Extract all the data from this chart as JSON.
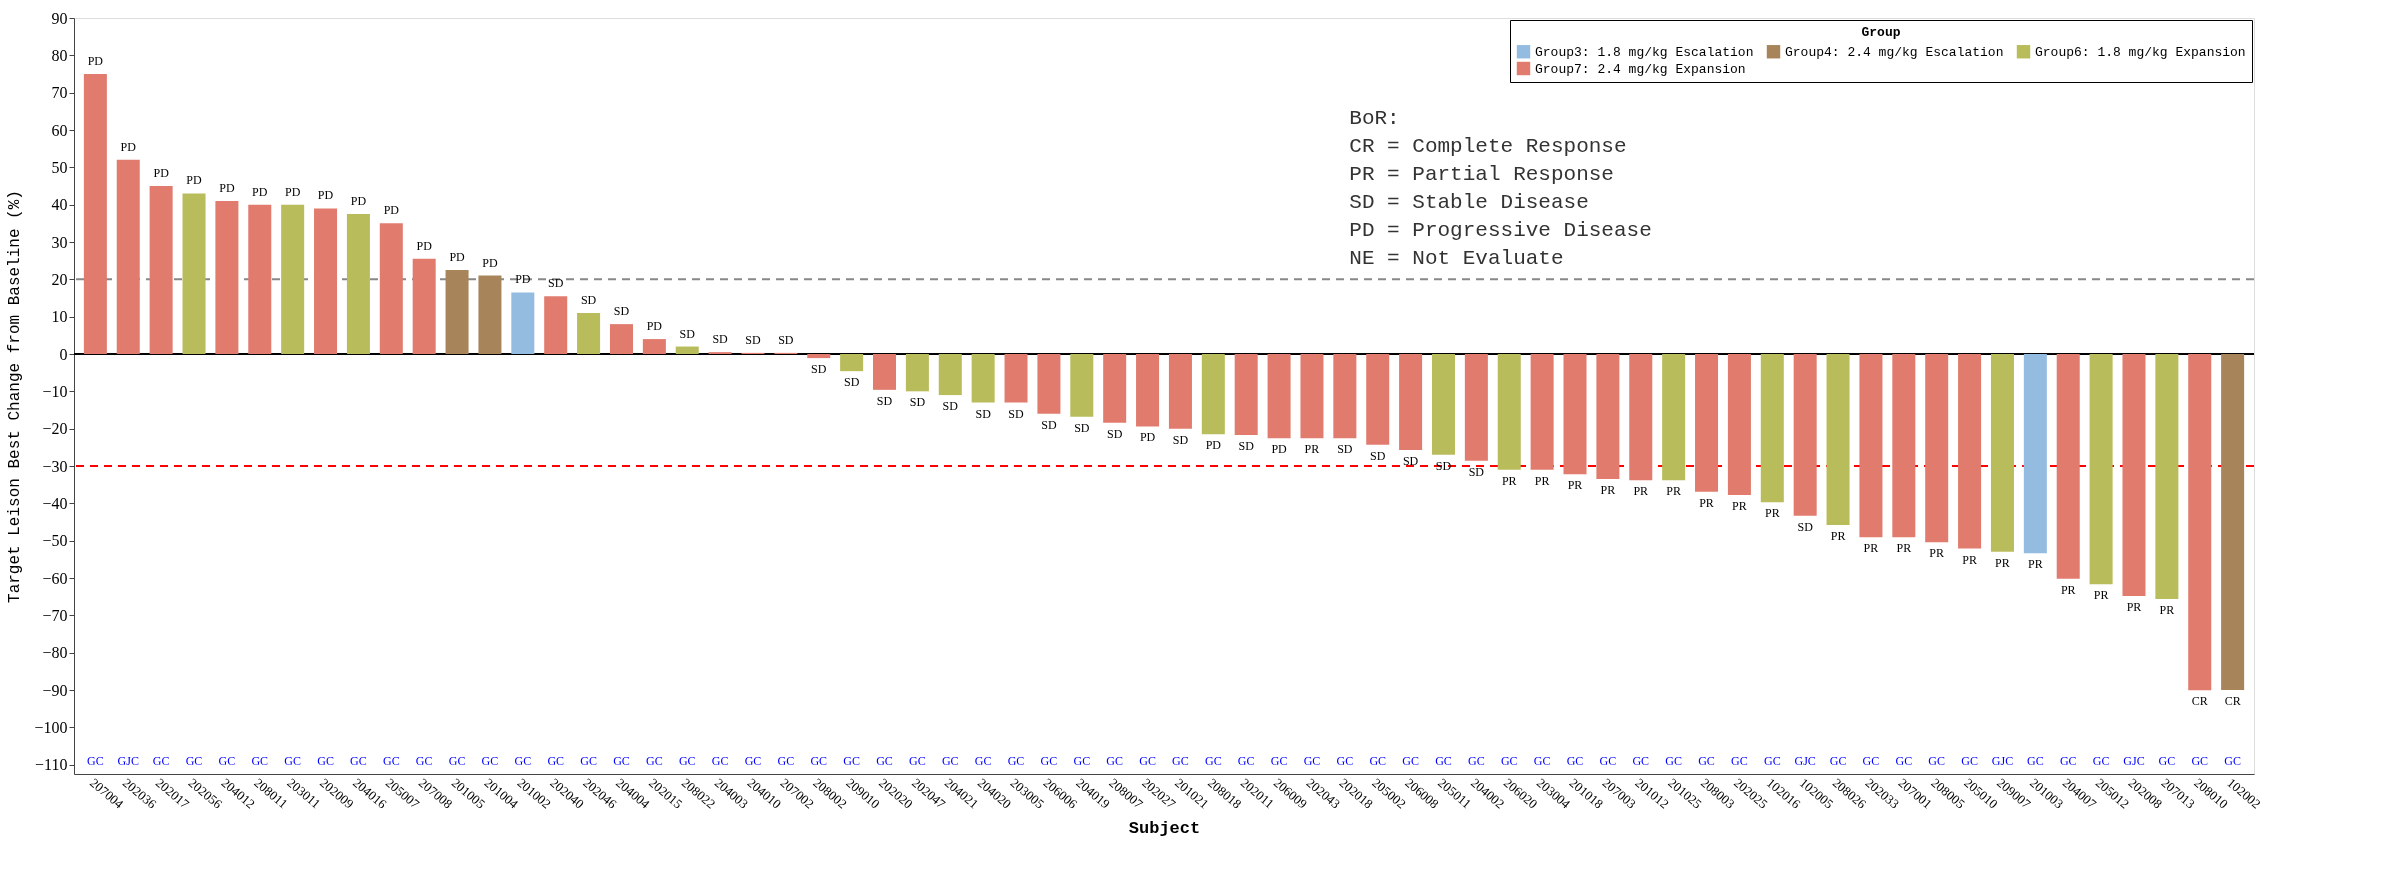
{
  "chart_data": {
    "type": "bar",
    "xlabel": "Subject",
    "ylabel": "Target Leison Best Change from Baseline (%)",
    "legend_title": "Group",
    "legend": "top right",
    "grid": false,
    "categories": [
      "207004",
      "202036",
      "202017",
      "202056",
      "204012",
      "208011",
      "203011",
      "202009",
      "204016",
      "205007",
      "207008",
      "201005",
      "201004",
      "201002",
      "202040",
      "202046",
      "204004",
      "202015",
      "208022",
      "204003",
      "204010",
      "207002",
      "208002",
      "209010",
      "202020",
      "202047",
      "204021",
      "204020",
      "203005",
      "206006",
      "204019",
      "208007",
      "202027",
      "201021",
      "208018",
      "202011",
      "206009",
      "202043",
      "202018",
      "205002",
      "206008",
      "205011",
      "204002",
      "206020",
      "203004",
      "201018",
      "207003",
      "201012",
      "201025",
      "208003",
      "202025",
      "102016",
      "102005",
      "208026",
      "202033",
      "207001",
      "208005",
      "205010",
      "209007",
      "201003",
      "204007",
      "205012",
      "202008",
      "207013",
      "208010",
      "102002"
    ],
    "series": [
      {
        "name": "Group3: 1.8 mg/kg Escalation",
        "color": "#94bce0",
        "values": [
          null,
          null,
          null,
          null,
          null,
          null,
          null,
          null,
          null,
          null,
          null,
          null,
          null,
          16.5,
          null,
          null,
          null,
          null,
          null,
          null,
          null,
          null,
          null,
          null,
          null,
          null,
          null,
          null,
          null,
          null,
          null,
          null,
          null,
          null,
          null,
          null,
          null,
          null,
          null,
          null,
          null,
          null,
          null,
          null,
          null,
          null,
          null,
          null,
          null,
          null,
          null,
          null,
          null,
          null,
          null,
          null,
          null,
          null,
          null,
          -53.4,
          null,
          null,
          null,
          null,
          null,
          null
        ]
      },
      {
        "name": "Group4: 2.4 mg/kg Escalation",
        "color": "#a8845a",
        "values": [
          null,
          null,
          null,
          null,
          null,
          null,
          null,
          null,
          null,
          null,
          null,
          22.5,
          21,
          null,
          null,
          null,
          null,
          null,
          null,
          null,
          null,
          null,
          null,
          null,
          null,
          null,
          null,
          null,
          null,
          null,
          null,
          null,
          null,
          null,
          null,
          null,
          null,
          null,
          null,
          null,
          null,
          null,
          null,
          null,
          null,
          null,
          null,
          null,
          null,
          null,
          null,
          null,
          null,
          null,
          null,
          null,
          null,
          null,
          null,
          null,
          null,
          null,
          null,
          null,
          null,
          -90
        ]
      },
      {
        "name": "Group6: 1.8 mg/kg Expansion",
        "color": "#b8bc5a",
        "values": [
          null,
          null,
          null,
          43,
          null,
          null,
          40,
          null,
          37.5,
          null,
          null,
          null,
          null,
          null,
          null,
          11,
          null,
          null,
          2,
          null,
          null,
          null,
          null,
          -4.6,
          null,
          -10,
          -11,
          -13,
          null,
          null,
          -16.8,
          null,
          null,
          null,
          -21.5,
          null,
          null,
          null,
          null,
          null,
          null,
          -27,
          null,
          -31,
          null,
          null,
          null,
          null,
          -33.8,
          null,
          null,
          -39.7,
          null,
          -45.8,
          null,
          null,
          null,
          null,
          -53,
          null,
          null,
          -61.7,
          null,
          -65.6,
          null,
          null
        ]
      },
      {
        "name": "Group7: 2.4 mg/kg Expansion",
        "color": "#e07b6e",
        "values": [
          75,
          52,
          45,
          null,
          41,
          40,
          null,
          39,
          null,
          35,
          25.5,
          null,
          null,
          null,
          15.5,
          null,
          8,
          4,
          null,
          0.5,
          0.3,
          0.3,
          -1.1,
          null,
          -9.6,
          null,
          null,
          null,
          -13,
          -16,
          null,
          -18.4,
          -19.4,
          -20,
          null,
          -21.7,
          -22.6,
          -22.6,
          -22.6,
          -24.3,
          -25.7,
          null,
          -28.6,
          null,
          -31,
          -32.2,
          -33.5,
          -33.8,
          null,
          -36.9,
          -37.8,
          null,
          -43.3,
          null,
          -49.1,
          -49.1,
          -50.4,
          -52.1,
          null,
          null,
          -60.2,
          null,
          -64.8,
          null,
          -90.1,
          null
        ]
      }
    ],
    "value_labels": [
      "PD",
      "PD",
      "PD",
      "PD",
      "PD",
      "PD",
      "PD",
      "PD",
      "PD",
      "PD",
      "PD",
      "PD",
      "PD",
      "PD",
      "SD",
      "SD",
      "SD",
      "PD",
      "SD",
      "SD",
      "SD",
      "SD",
      "SD",
      "SD",
      "SD",
      "SD",
      "SD",
      "SD",
      "SD",
      "SD",
      "SD",
      "SD",
      "PD",
      "SD",
      "PD",
      "SD",
      "PD",
      "PR",
      "SD",
      "SD",
      "SD",
      "SD",
      "SD",
      "PR",
      "PR",
      "PR",
      "PR",
      "PR",
      "PR",
      "PR",
      "PR",
      "PR",
      "SD",
      "PR",
      "PR",
      "PR",
      "PR",
      "PR",
      "PR",
      "PR",
      "PR",
      "PR",
      "PR",
      "PR",
      "CR",
      "CR"
    ],
    "ylim": [
      -112.5,
      90
    ],
    "yticks": [
      -110,
      -100,
      -90,
      -80,
      -70,
      -60,
      -50,
      -40,
      -30,
      -20,
      -10,
      0,
      10,
      20,
      30,
      40,
      50,
      60,
      70,
      80,
      90
    ],
    "ref_lines": [
      {
        "axis": "y",
        "value": 20,
        "color": "#888888",
        "line_style": "dashed"
      },
      {
        "axis": "y",
        "value": -30,
        "color": "#ff0000",
        "line_style": "dashed"
      },
      {
        "axis": "y",
        "value": 0,
        "color": "#000000",
        "line_style": "solid"
      }
    ],
    "annotations": [
      "BoR:\nCR = Complete Response\nPR = Partial Response\nSD = Stable Disease\nPD = Progressive Disease\nNE = Not Evaluate",
      "GC",
      "GJC",
      "GC",
      "GC",
      "GC",
      "GC",
      "GC",
      "GC",
      "GC",
      "GC",
      "GC",
      "GC",
      "GC",
      "GC",
      "GC",
      "GC",
      "GC",
      "GC",
      "GC",
      "GC",
      "GC",
      "GC",
      "GC",
      "GC",
      "GC",
      "GC",
      "GC",
      "GC",
      "GC",
      "GC",
      "GC",
      "GC",
      "GC",
      "GC",
      "GC",
      "GC",
      "GC",
      "GC",
      "GC",
      "GC",
      "GC",
      "GC",
      "GC",
      "GC",
      "GC",
      "GC",
      "GC",
      "GC",
      "GC",
      "GC",
      "GC",
      "GC",
      "GJC",
      "GC",
      "GC",
      "GC",
      "GC",
      "GC",
      "GJC",
      "GC",
      "GC",
      "GC",
      "GJC",
      "GC",
      "GC",
      "GC"
    ]
  }
}
